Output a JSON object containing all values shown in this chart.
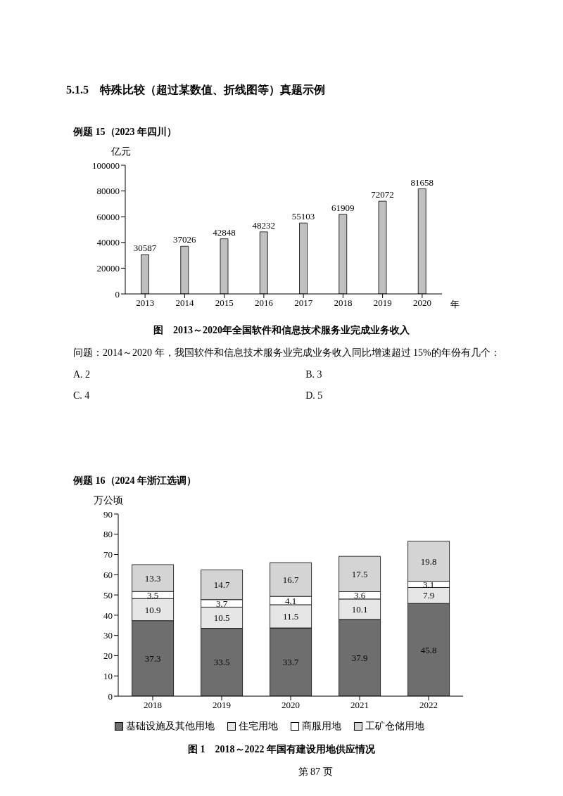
{
  "chart_data": [
    {
      "type": "bar",
      "title": "图　2013～2020年全国软件和信息技术服务业完成业务收入",
      "ylabel": "亿元",
      "xlabel": "年",
      "annotations": [
        "5.1.5　特殊比较（超过某数值、折线图等）真题示例",
        "例题 15（2023 年四川）",
        "问题：2014～2020 年，我国软件和信息技术服务业完成业务收入同比增速超过 15%的年份有几个：",
        "A. 2",
        "B. 3",
        "C. 4",
        "D. 5"
      ],
      "categories": [
        "2013",
        "2014",
        "2015",
        "2016",
        "2017",
        "2018",
        "2019",
        "2020"
      ],
      "values": [
        30587,
        37026,
        42848,
        48232,
        55103,
        61909,
        72072,
        81658
      ],
      "color": "#c0c0c0",
      "ylim": [
        0,
        100000
      ],
      "yticks": [
        0,
        20000,
        40000,
        60000,
        80000,
        100000
      ],
      "data_labels": true
    },
    {
      "type": "bar",
      "title": "图 1　2018～2022 年国有建设用地供应情况",
      "ylabel": "万公顷",
      "stacked": true,
      "legend": "bottom",
      "data_labels": true,
      "annotations": [
        "例题 16（2024 年浙江选调）",
        "第 87 页"
      ],
      "categories": [
        "2018",
        "2019",
        "2020",
        "2021",
        "2022"
      ],
      "series": [
        {
          "name": "基础设施及其他用地",
          "color": "#6e6e6e",
          "values": [
            37.3,
            33.5,
            33.7,
            37.9,
            45.8
          ]
        },
        {
          "name": "住宅用地",
          "color": "#e6e6e6",
          "values": [
            10.9,
            10.5,
            11.5,
            10.1,
            7.9
          ]
        },
        {
          "name": "商服用地",
          "color": "#ffffff",
          "values": [
            3.5,
            3.7,
            4.1,
            3.6,
            3.1
          ]
        },
        {
          "name": "工矿仓储用地",
          "color": "#d4d4d4",
          "values": [
            13.3,
            14.7,
            16.7,
            17.5,
            19.8
          ]
        }
      ],
      "ylim": [
        0,
        90
      ],
      "yticks": [
        0,
        10,
        20,
        30,
        40,
        50,
        60,
        70,
        80,
        90
      ]
    }
  ]
}
